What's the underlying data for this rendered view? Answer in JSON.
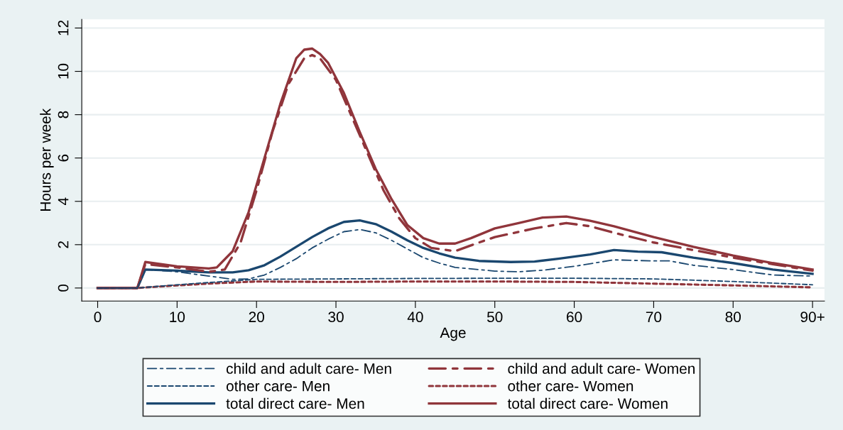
{
  "chart_data": {
    "type": "line",
    "xlabel": "Age",
    "ylabel": "Hours per week",
    "xlim": [
      -2,
      91.5
    ],
    "ylim": [
      -0.6,
      12.4
    ],
    "xticks": [
      0,
      10,
      20,
      30,
      40,
      50,
      60,
      70,
      80,
      {
        "value": 90,
        "label": "90+"
      }
    ],
    "yticks": [
      0,
      2,
      4,
      6,
      8,
      10,
      12
    ],
    "grid": "y",
    "legend": "bottom",
    "series": [
      {
        "name": "child and adult care- Men",
        "color": "#1a476f",
        "line_style": "dashdot",
        "x": [
          0,
          5,
          6,
          10,
          14,
          17,
          19,
          21,
          23,
          25,
          27,
          29,
          31,
          33,
          35,
          37,
          39,
          41,
          43,
          45,
          50,
          53,
          56,
          60,
          65,
          70,
          72,
          75,
          80,
          85,
          90
        ],
        "values": [
          0,
          0,
          0.85,
          0.75,
          0.55,
          0.4,
          0.42,
          0.6,
          0.95,
          1.35,
          1.85,
          2.25,
          2.6,
          2.7,
          2.55,
          2.2,
          1.8,
          1.4,
          1.15,
          0.95,
          0.78,
          0.75,
          0.82,
          1.0,
          1.3,
          1.25,
          1.25,
          1.05,
          0.85,
          0.6,
          0.55
        ]
      },
      {
        "name": "other care- Men",
        "color": "#1a476f",
        "line_style": "dashed",
        "x": [
          0,
          5,
          10,
          15,
          20,
          30,
          40,
          50,
          60,
          70,
          80,
          90
        ],
        "values": [
          0,
          0,
          0.15,
          0.28,
          0.4,
          0.42,
          0.44,
          0.45,
          0.45,
          0.42,
          0.3,
          0.15
        ]
      },
      {
        "name": "total direct care- Men",
        "color": "#1a476f",
        "line_style": "solid",
        "x": [
          0,
          5,
          6,
          10,
          14,
          17,
          19,
          21,
          23,
          25,
          27,
          29,
          31,
          33,
          35,
          37,
          39,
          41,
          43,
          45,
          48,
          52,
          55,
          58,
          62,
          65,
          68,
          71,
          75,
          80,
          85,
          90
        ],
        "values": [
          0,
          0,
          0.85,
          0.8,
          0.72,
          0.72,
          0.82,
          1.05,
          1.45,
          1.9,
          2.35,
          2.75,
          3.05,
          3.12,
          2.95,
          2.6,
          2.2,
          1.85,
          1.6,
          1.4,
          1.25,
          1.2,
          1.22,
          1.35,
          1.55,
          1.75,
          1.68,
          1.65,
          1.4,
          1.15,
          0.85,
          0.65
        ]
      },
      {
        "name": "child and adult care- Women",
        "color": "#90353b",
        "line_style": "dashdot",
        "x": [
          0,
          5,
          6,
          10,
          14,
          16,
          18,
          20,
          22,
          24,
          26,
          27,
          28,
          30,
          32,
          34,
          36,
          38,
          40,
          42,
          45,
          48,
          50,
          55,
          59,
          62,
          65,
          70,
          75,
          80,
          85,
          90
        ],
        "values": [
          0,
          0,
          1.1,
          0.95,
          0.75,
          0.85,
          2.1,
          4.5,
          7.2,
          9.4,
          10.6,
          10.75,
          10.6,
          9.6,
          7.9,
          6.2,
          4.5,
          3.2,
          2.3,
          1.85,
          1.7,
          2.1,
          2.35,
          2.75,
          3.0,
          2.85,
          2.55,
          2.1,
          1.75,
          1.4,
          1.1,
          0.8
        ]
      },
      {
        "name": "other care- Women",
        "color": "#90353b",
        "line_style": "dotted",
        "x": [
          0,
          5,
          10,
          15,
          20,
          30,
          40,
          50,
          60,
          70,
          80,
          90
        ],
        "values": [
          0,
          0,
          0.12,
          0.22,
          0.3,
          0.28,
          0.3,
          0.3,
          0.28,
          0.2,
          0.12,
          0.03
        ]
      },
      {
        "name": "total direct care- Women",
        "color": "#90353b",
        "line_style": "solid",
        "x": [
          0,
          5,
          6,
          10,
          14,
          15,
          17,
          19,
          21,
          23,
          25,
          26,
          27,
          28,
          29,
          31,
          33,
          35,
          37,
          39,
          41,
          43,
          45,
          47,
          50,
          53,
          56,
          59,
          62,
          65,
          70,
          75,
          80,
          85,
          90
        ],
        "values": [
          0,
          0,
          1.2,
          1.0,
          0.9,
          0.95,
          1.7,
          3.5,
          6.0,
          8.5,
          10.6,
          11.0,
          11.05,
          10.8,
          10.4,
          9.0,
          7.2,
          5.5,
          4.1,
          2.9,
          2.3,
          2.05,
          2.05,
          2.3,
          2.75,
          3.0,
          3.25,
          3.3,
          3.1,
          2.85,
          2.35,
          1.9,
          1.5,
          1.15,
          0.85
        ]
      }
    ]
  }
}
